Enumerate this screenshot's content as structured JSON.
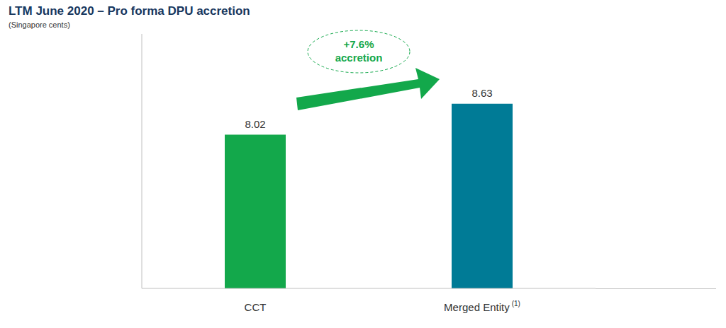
{
  "chart_data": {
    "type": "bar",
    "title": "LTM June 2020 – Pro forma DPU accretion",
    "subtitle": "(Singapore cents)",
    "categories": [
      "CCT",
      "Merged Entity (1)"
    ],
    "values": [
      8.02,
      8.63
    ],
    "colors": [
      "#13a84b",
      "#007b96"
    ],
    "ylim": [
      5,
      10
    ],
    "tick_labels": "x",
    "data_labels": true,
    "annotation": "+7.6% accretion"
  }
}
